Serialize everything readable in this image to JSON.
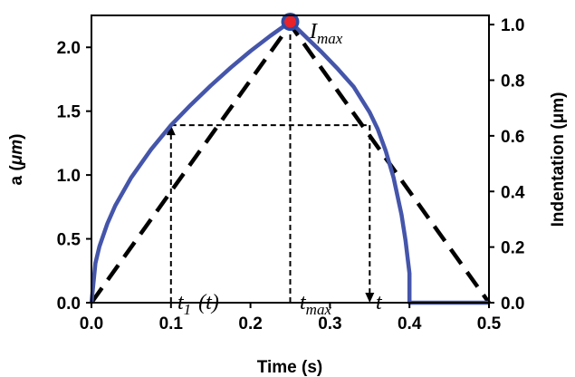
{
  "chart_data": {
    "type": "line",
    "xlabel": "Time (s)",
    "ylabel": "a (μm)",
    "ylabel_parts": {
      "prefix": "a (",
      "unit": "μm",
      "suffix": ")"
    },
    "y2label": "Indentation (μm)",
    "xlim": [
      0,
      0.5
    ],
    "ylim": [
      0,
      2.25
    ],
    "y2lim": [
      0,
      1.033
    ],
    "x_ticks": [
      "0.0",
      "0.1",
      "0.2",
      "0.3",
      "0.4",
      "0.5"
    ],
    "y_ticks": [
      "0.0",
      "0.5",
      "1.0",
      "1.5",
      "2.0"
    ],
    "y2_ticks": [
      "0.0",
      "0.2",
      "0.4",
      "0.6",
      "0.8",
      "1.0"
    ],
    "grid": false,
    "colors": {
      "contact_radius": "#4455aa",
      "indentation": "#000000",
      "peak_marker": "#e8232a",
      "peak_ring": "#2b4aa8"
    },
    "series": [
      {
        "axis": "left",
        "x": [
          0,
          0.005,
          0.01,
          0.02,
          0.03,
          0.05,
          0.075,
          0.1,
          0.125,
          0.15,
          0.175,
          0.2,
          0.225,
          0.25,
          0.27,
          0.29,
          0.31,
          0.33,
          0.35,
          0.36,
          0.37,
          0.38,
          0.39,
          0.395,
          0.4,
          0.4,
          0.45,
          0.5
        ],
        "y": [
          0,
          0.31,
          0.44,
          0.62,
          0.76,
          0.98,
          1.2,
          1.39,
          1.55,
          1.7,
          1.84,
          1.97,
          2.09,
          2.2,
          2.08,
          1.96,
          1.83,
          1.69,
          1.49,
          1.36,
          1.19,
          0.98,
          0.69,
          0.49,
          0.23,
          0,
          0,
          0
        ]
      },
      {
        "axis": "right",
        "style": "dashed",
        "x": [
          0,
          0.25,
          0.5
        ],
        "y": [
          0,
          1.0,
          0
        ]
      }
    ],
    "guides": [
      {
        "from": [
          0.1,
          0
        ],
        "to": [
          0.1,
          1.39
        ],
        "arrow": true
      },
      {
        "from": [
          0.1,
          1.39
        ],
        "to": [
          0.35,
          1.39
        ]
      },
      {
        "from": [
          0.35,
          1.39
        ],
        "to": [
          0.35,
          0
        ],
        "arrow": true
      },
      {
        "from": [
          0.25,
          0
        ],
        "to": [
          0.25,
          2.2
        ]
      }
    ],
    "peak": {
      "x": 0.25,
      "y": 2.2
    },
    "annotations": {
      "imax": {
        "base": "I",
        "sub": "max"
      },
      "t1": {
        "base": "t",
        "sub": "1",
        "suffix": "(t)"
      },
      "tmax": {
        "base": "t",
        "sub": "max"
      },
      "t": {
        "base": "t"
      }
    }
  }
}
